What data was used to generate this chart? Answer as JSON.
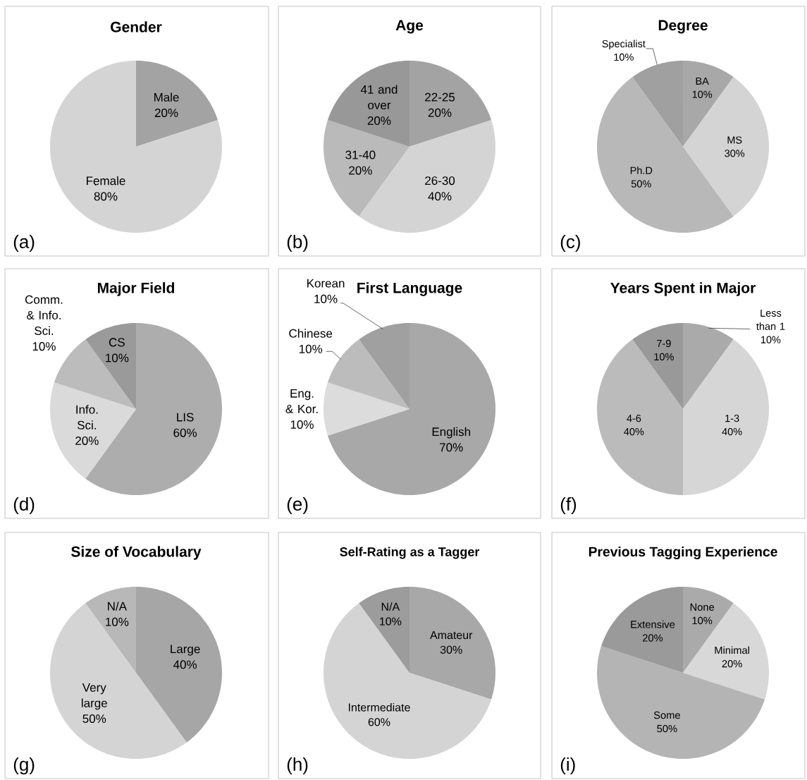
{
  "chart_data": [
    {
      "type": "pie",
      "title": "Gender",
      "categories": [
        "Male",
        "Female"
      ],
      "values": [
        20,
        80
      ],
      "value_labels": [
        "20%",
        "80%"
      ],
      "colors": [
        "#a3a3a3",
        "#d4d4d4"
      ],
      "annotations": [
        "(a)"
      ]
    },
    {
      "type": "pie",
      "title": "Age",
      "categories": [
        "22-25",
        "26-30",
        "31-40",
        "41 and over"
      ],
      "values": [
        20,
        40,
        20,
        20
      ],
      "value_labels": [
        "20%",
        "40%",
        "20%",
        "20%"
      ],
      "colors": [
        "#a3a3a3",
        "#d4d4d4",
        "#bababa",
        "#989898"
      ],
      "annotations": [
        "(b)"
      ]
    },
    {
      "type": "pie",
      "title": "Degree",
      "categories": [
        "BA",
        "MS",
        "Ph.D",
        "Specialist"
      ],
      "values": [
        10,
        30,
        50,
        10
      ],
      "value_labels": [
        "10%",
        "30%",
        "50%",
        "10%"
      ],
      "colors": [
        "#a8a8a8",
        "#d4d4d4",
        "#b8b8b8",
        "#a0a0a0"
      ],
      "annotations": [
        "(c)"
      ]
    },
    {
      "type": "pie",
      "title": "Major Field",
      "categories": [
        "LIS",
        "Info. Sci.",
        "Comm. & Info. Sci.",
        "CS"
      ],
      "values": [
        60,
        20,
        10,
        10
      ],
      "value_labels": [
        "60%",
        "20%",
        "10%",
        "10%"
      ],
      "colors": [
        "#adadad",
        "#dadada",
        "#bcbcbc",
        "#9a9a9a"
      ],
      "annotations": [
        "(d)"
      ]
    },
    {
      "type": "pie",
      "title": "First Language",
      "categories": [
        "English",
        "Eng. & Kor.",
        "Chinese",
        "Korean"
      ],
      "values": [
        70,
        10,
        10,
        10
      ],
      "value_labels": [
        "70%",
        "10%",
        "10%",
        "10%"
      ],
      "colors": [
        "#a8a8a8",
        "#dcdcdc",
        "#bcbcbc",
        "#a0a0a0"
      ],
      "annotations": [
        "(e)"
      ]
    },
    {
      "type": "pie",
      "title": "Years Spent in Major",
      "categories": [
        "Less than 1",
        "1-3",
        "4-6",
        "7-9"
      ],
      "values": [
        10,
        40,
        40,
        10
      ],
      "value_labels": [
        "10%",
        "40%",
        "40%",
        "10%"
      ],
      "colors": [
        "#aaaaaa",
        "#d6d6d6",
        "#bbbbbb",
        "#999999"
      ],
      "annotations": [
        "(f)"
      ]
    },
    {
      "type": "pie",
      "title": "Size of Vocabulary",
      "categories": [
        "Large",
        "Very large",
        "N/A"
      ],
      "values": [
        40,
        50,
        10
      ],
      "value_labels": [
        "40%",
        "50%",
        "10%"
      ],
      "colors": [
        "#a6a6a6",
        "#d4d4d4",
        "#b8b8b8"
      ],
      "annotations": [
        "(g)"
      ]
    },
    {
      "type": "pie",
      "title": "Self-Rating as a Tagger",
      "categories": [
        "Amateur",
        "Intermediate",
        "N/A"
      ],
      "values": [
        30,
        60,
        10
      ],
      "value_labels": [
        "30%",
        "60%",
        "10%"
      ],
      "colors": [
        "#a8a8a8",
        "#d4d4d4",
        "#9c9c9c"
      ],
      "annotations": [
        "(h)"
      ]
    },
    {
      "type": "pie",
      "title": "Previous Tagging Experience",
      "categories": [
        "None",
        "Minimal",
        "Some",
        "Extensive"
      ],
      "values": [
        10,
        20,
        50,
        20
      ],
      "value_labels": [
        "10%",
        "20%",
        "50%",
        "20%"
      ],
      "colors": [
        "#aaaaaa",
        "#d8d8d8",
        "#b4b4b4",
        "#9a9a9a"
      ],
      "annotations": [
        "(i)"
      ]
    }
  ]
}
